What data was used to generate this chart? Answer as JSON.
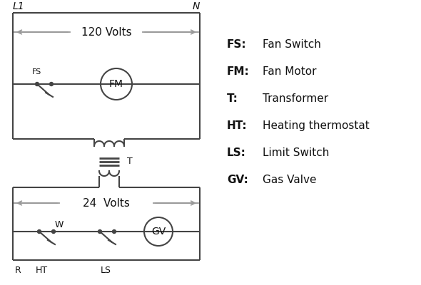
{
  "bg_color": "#ffffff",
  "line_color": "#444444",
  "arrow_color": "#999999",
  "text_color": "#111111",
  "legend_items": [
    [
      "FS:",
      "Fan Switch"
    ],
    [
      "FM:",
      "Fan Motor"
    ],
    [
      "T:",
      "Transformer"
    ],
    [
      "HT:",
      "Heating thermostat"
    ],
    [
      "LS:",
      "Limit Switch"
    ],
    [
      "GV:",
      "Gas Valve"
    ]
  ],
  "L1_label": "L1",
  "N_label": "N",
  "volts120_label": "120 Volts",
  "volts24_label": "24  Volts",
  "FS_label": "FS",
  "FM_label": "FM",
  "T_label": "T",
  "R_label": "R",
  "W_label": "W",
  "HT_label": "HT",
  "LS_label": "LS",
  "GV_label": "GV"
}
